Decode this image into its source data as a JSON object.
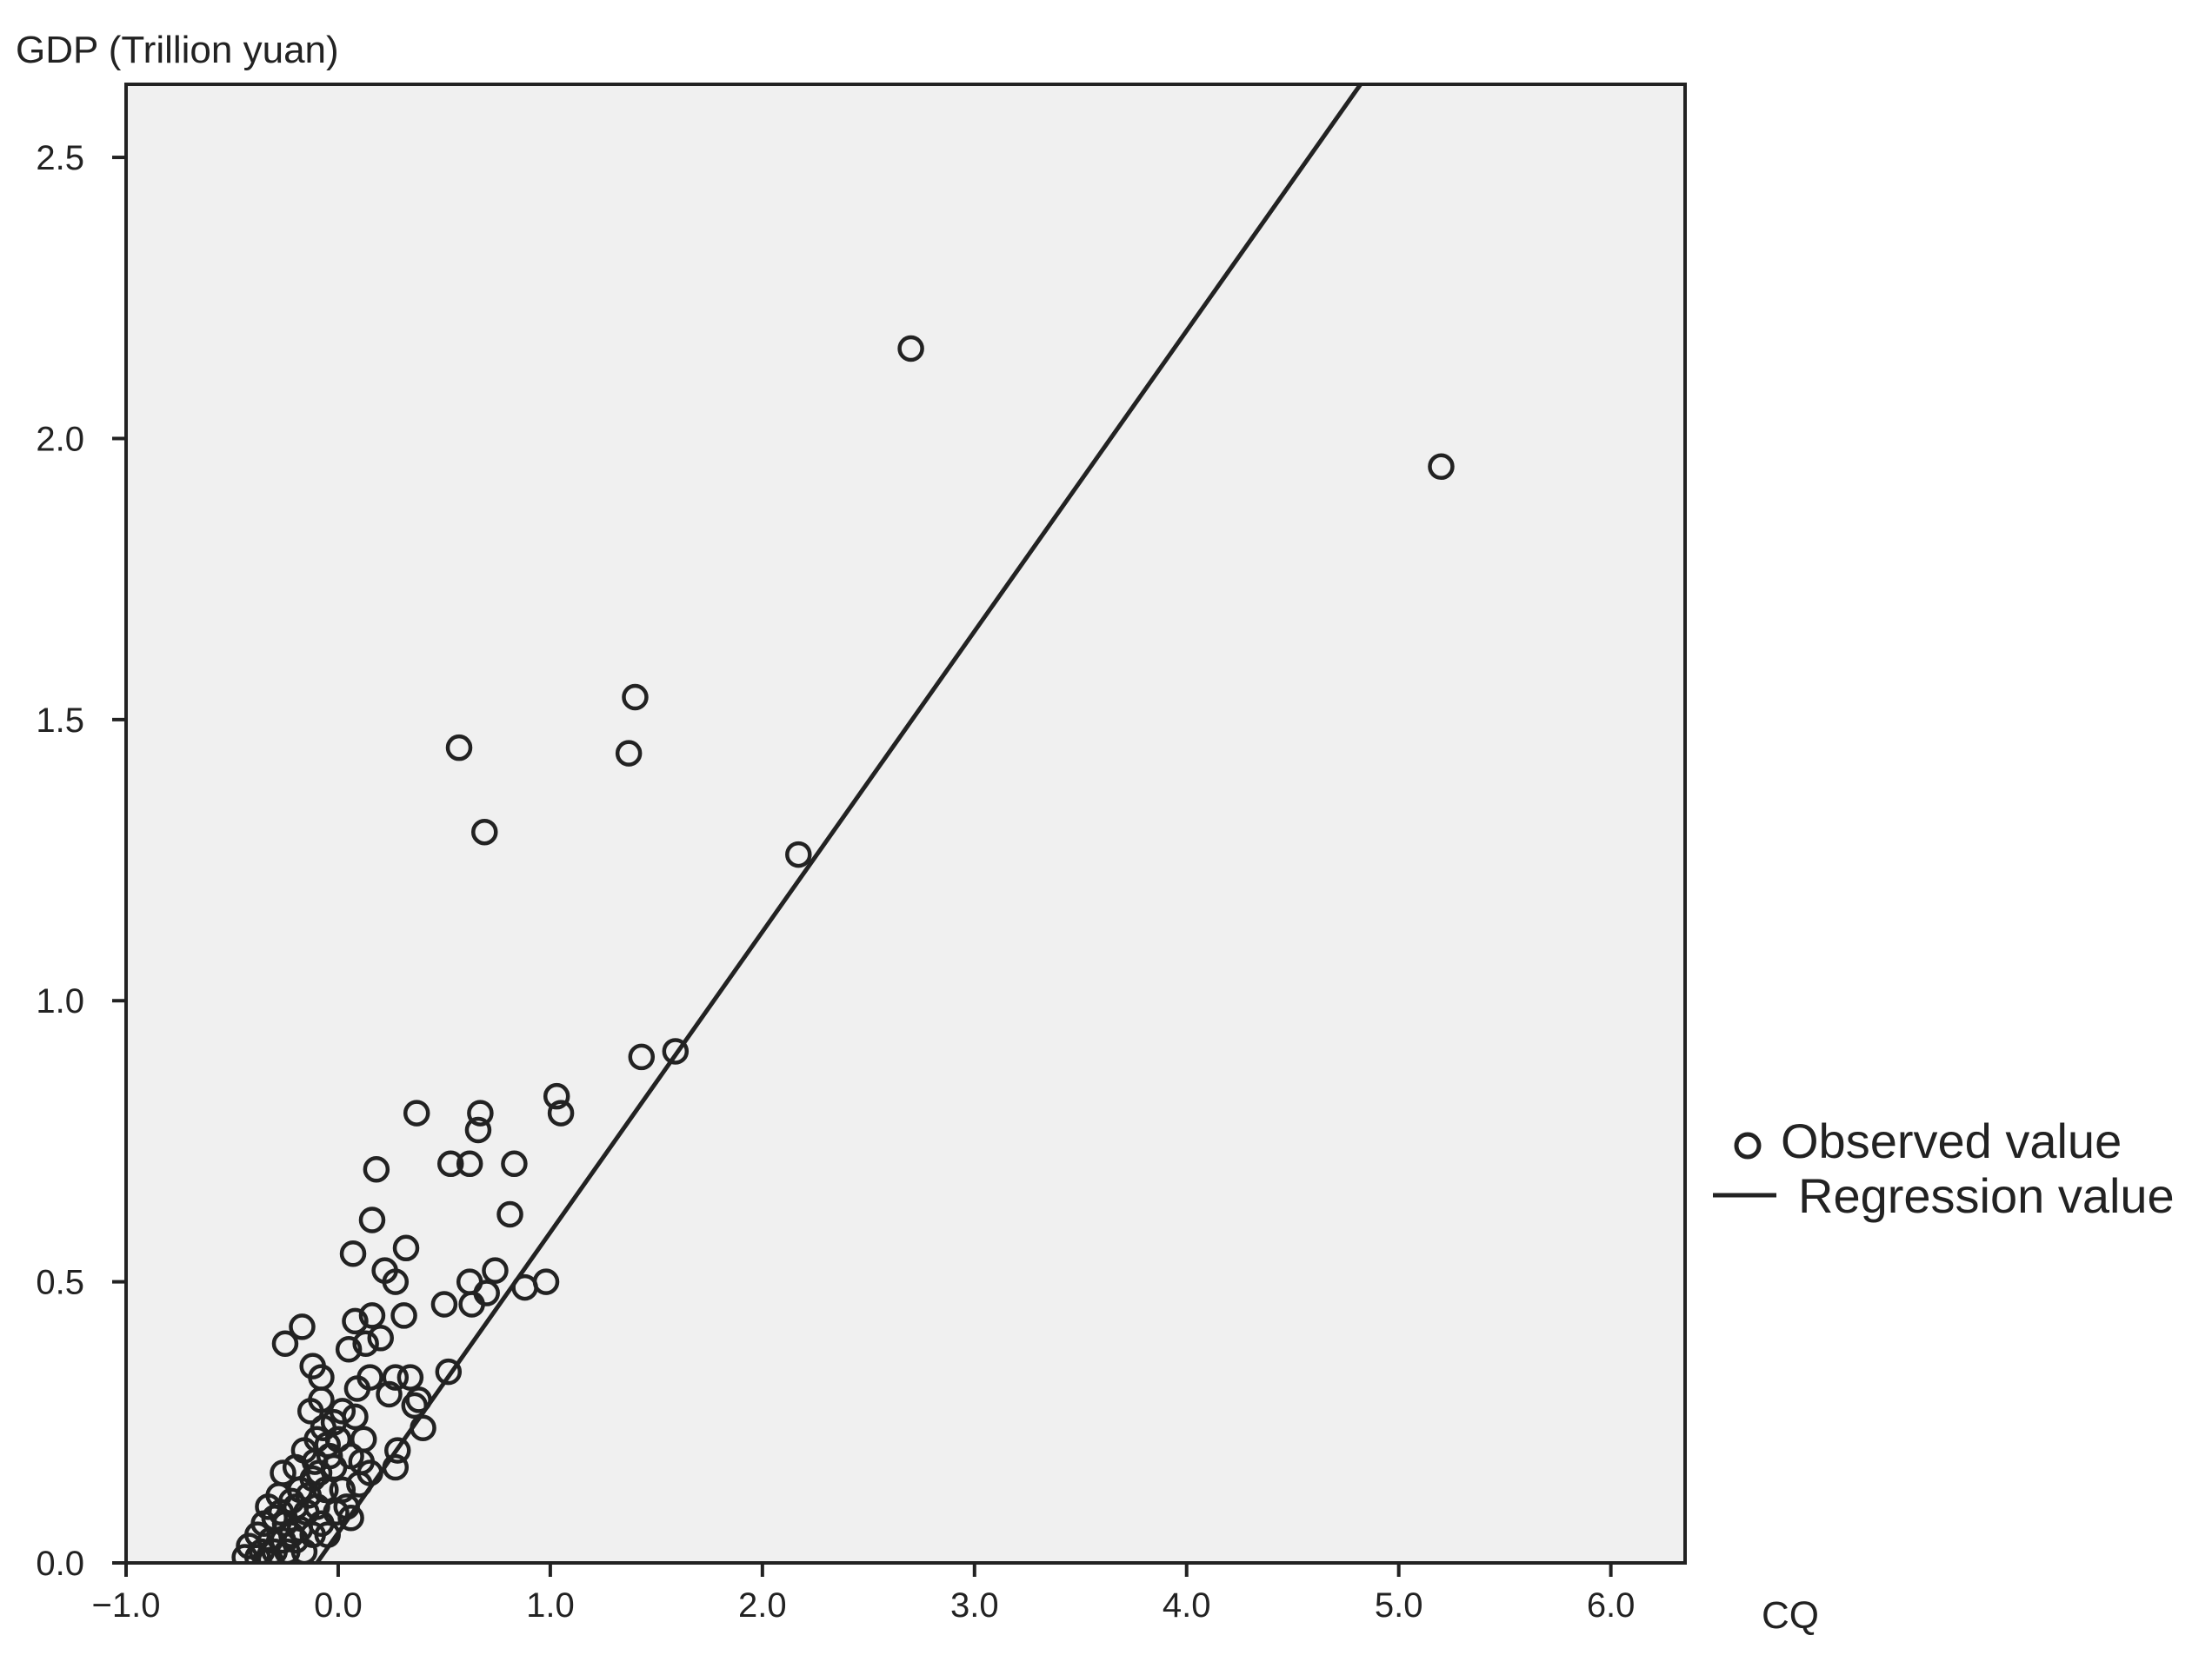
{
  "chart_data": {
    "type": "scatter",
    "title": "",
    "xlabel": "CQ",
    "ylabel": "GDP (Trillion yuan)",
    "xlim": [
      -1.0,
      6.35
    ],
    "ylim": [
      0.0,
      2.63
    ],
    "xticks": [
      -1.0,
      0.0,
      1.0,
      2.0,
      3.0,
      4.0,
      5.0,
      6.0
    ],
    "xtick_labels": [
      "−1.0",
      "0.0",
      "1.0",
      "2.0",
      "3.0",
      "4.0",
      "5.0",
      "6.0"
    ],
    "yticks": [
      0.0,
      0.5,
      1.0,
      1.5,
      2.0,
      2.5
    ],
    "ytick_labels": [
      "0.0",
      "0.5",
      "1.0",
      "1.5",
      "2.0",
      "2.5"
    ],
    "grid": false,
    "plot_background": "#f0f0f0",
    "legend": {
      "position": "right",
      "entries": [
        "Observed value",
        "Regression value"
      ]
    },
    "series": [
      {
        "name": "Observed value",
        "kind": "scatter",
        "marker": "open-circle",
        "color": "#222222",
        "points": [
          [
            2.7,
            2.16
          ],
          [
            5.2,
            1.95
          ],
          [
            1.4,
            1.54
          ],
          [
            1.37,
            1.44
          ],
          [
            0.57,
            1.45
          ],
          [
            0.69,
            1.3
          ],
          [
            2.17,
            1.26
          ],
          [
            1.43,
            0.9
          ],
          [
            1.59,
            0.91
          ],
          [
            0.37,
            0.8
          ],
          [
            0.67,
            0.8
          ],
          [
            1.03,
            0.83
          ],
          [
            1.05,
            0.8
          ],
          [
            0.66,
            0.77
          ],
          [
            0.53,
            0.71
          ],
          [
            0.62,
            0.71
          ],
          [
            0.83,
            0.71
          ],
          [
            0.18,
            0.7
          ],
          [
            0.81,
            0.62
          ],
          [
            0.16,
            0.61
          ],
          [
            0.07,
            0.55
          ],
          [
            0.32,
            0.56
          ],
          [
            0.22,
            0.52
          ],
          [
            0.27,
            0.5
          ],
          [
            0.74,
            0.52
          ],
          [
            0.62,
            0.5
          ],
          [
            0.98,
            0.5
          ],
          [
            0.88,
            0.49
          ],
          [
            0.7,
            0.48
          ],
          [
            0.63,
            0.46
          ],
          [
            0.5,
            0.46
          ],
          [
            -0.17,
            0.42
          ],
          [
            -0.25,
            0.39
          ],
          [
            0.08,
            0.43
          ],
          [
            0.16,
            0.44
          ],
          [
            0.31,
            0.44
          ],
          [
            0.05,
            0.38
          ],
          [
            0.2,
            0.4
          ],
          [
            0.13,
            0.39
          ],
          [
            -0.12,
            0.35
          ],
          [
            0.52,
            0.34
          ],
          [
            0.34,
            0.33
          ],
          [
            0.27,
            0.33
          ],
          [
            0.15,
            0.33
          ],
          [
            0.09,
            0.31
          ],
          [
            -0.08,
            0.33
          ],
          [
            0.38,
            0.29
          ],
          [
            0.24,
            0.3
          ],
          [
            0.4,
            0.24
          ],
          [
            0.36,
            0.28
          ],
          [
            0.28,
            0.2
          ],
          [
            0.27,
            0.17
          ],
          [
            -0.13,
            0.27
          ],
          [
            -0.08,
            0.29
          ],
          [
            0.02,
            0.27
          ],
          [
            0.08,
            0.26
          ],
          [
            -0.02,
            0.25
          ],
          [
            0.12,
            0.22
          ],
          [
            -0.05,
            0.21
          ],
          [
            0.06,
            0.19
          ],
          [
            -0.1,
            0.22
          ],
          [
            0.15,
            0.16
          ],
          [
            -0.16,
            0.2
          ],
          [
            -0.02,
            0.17
          ],
          [
            0.1,
            0.14
          ],
          [
            -0.2,
            0.17
          ],
          [
            -0.26,
            0.16
          ],
          [
            -0.12,
            0.15
          ],
          [
            0.02,
            0.13
          ],
          [
            -0.06,
            0.13
          ],
          [
            -0.18,
            0.13
          ],
          [
            -0.28,
            0.12
          ],
          [
            -0.22,
            0.11
          ],
          [
            -0.1,
            0.1
          ],
          [
            0.04,
            0.1
          ],
          [
            -0.15,
            0.09
          ],
          [
            -0.3,
            0.08
          ],
          [
            -0.35,
            0.07
          ],
          [
            -0.25,
            0.07
          ],
          [
            -0.18,
            0.06
          ],
          [
            -0.08,
            0.07
          ],
          [
            0.06,
            0.08
          ],
          [
            -0.38,
            0.05
          ],
          [
            -0.32,
            0.04
          ],
          [
            -0.26,
            0.04
          ],
          [
            -0.2,
            0.04
          ],
          [
            -0.12,
            0.05
          ],
          [
            -0.05,
            0.05
          ],
          [
            -0.42,
            0.03
          ],
          [
            -0.36,
            0.02
          ],
          [
            -0.3,
            0.02
          ],
          [
            -0.24,
            0.02
          ],
          [
            -0.16,
            0.02
          ],
          [
            -0.44,
            0.01
          ],
          [
            -0.38,
            0.01
          ],
          [
            -0.32,
            0.005
          ],
          [
            -0.14,
            0.12
          ],
          [
            -0.09,
            0.16
          ],
          [
            -0.04,
            0.19
          ],
          [
            -0.11,
            0.18
          ],
          [
            -0.07,
            0.24
          ],
          [
            0.0,
            0.22
          ],
          [
            -0.2,
            0.1
          ],
          [
            -0.27,
            0.09
          ],
          [
            0.11,
            0.18
          ],
          [
            -0.01,
            0.09
          ],
          [
            -0.22,
            0.05
          ],
          [
            -0.33,
            0.1
          ]
        ]
      },
      {
        "name": "Regression value",
        "kind": "line",
        "color": "#222222",
        "points": [
          [
            -0.1,
            0.0
          ],
          [
            4.82,
            2.63
          ]
        ]
      }
    ]
  }
}
